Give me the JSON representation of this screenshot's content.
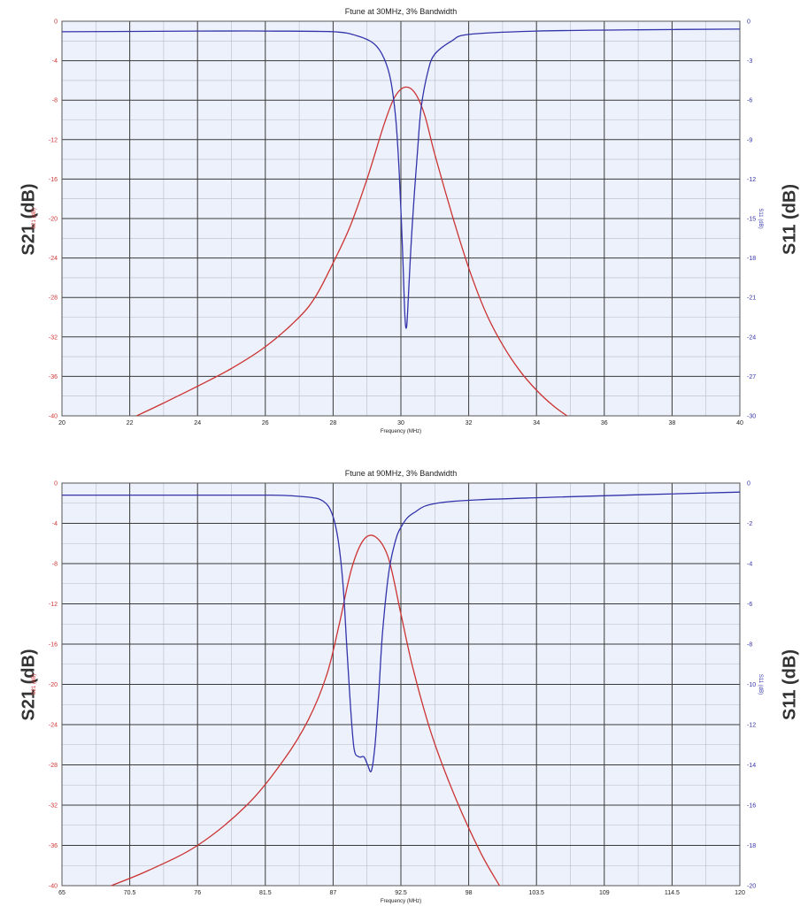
{
  "chart_data": [
    {
      "type": "line",
      "title": "Ftune at 30MHz, 3% Bandwidth",
      "xlabel": "Frequency (MHz)",
      "ylabel_left": "S21 (dB)",
      "ylabel_right": "S11 (dB)",
      "outer_label_left": "S21  (dB)",
      "outer_label_right": "S11  (dB)",
      "xlim": [
        20,
        40
      ],
      "ylim_left": [
        -40,
        0
      ],
      "ylim_right": [
        -30,
        0
      ],
      "x_ticks": [
        "20",
        "22",
        "24",
        "26",
        "28",
        "30",
        "32",
        "34",
        "36",
        "38",
        "40"
      ],
      "y_ticks_left": [
        "0",
        "-4",
        "-8",
        "-12",
        "-16",
        "-20",
        "-24",
        "-28",
        "-32",
        "-36",
        "-40"
      ],
      "y_ticks_right": [
        "0",
        "-3",
        "-6",
        "-9",
        "-12",
        "-15",
        "-18",
        "-21",
        "-24",
        "-27",
        "-30"
      ],
      "grid": true,
      "colors": {
        "s21": "#cc3333",
        "s11": "#3333aa",
        "plot_bg": "#ecf1fb"
      },
      "series": [
        {
          "name": "S21 (dB)",
          "axis": "left",
          "x": [
            22.2,
            23,
            24,
            25,
            26,
            27,
            27.5,
            28,
            28.5,
            29,
            29.5,
            29.8,
            30.1,
            30.4,
            30.7,
            31,
            31.5,
            32,
            32.5,
            33,
            33.5,
            34,
            34.5,
            34.9
          ],
          "values": [
            -40,
            -38.7,
            -37,
            -35.2,
            -33,
            -30,
            -27.8,
            -24.5,
            -20.8,
            -16,
            -10.5,
            -7.8,
            -6.7,
            -7.2,
            -9.5,
            -13.5,
            -19.5,
            -25,
            -29.5,
            -32.8,
            -35.4,
            -37.4,
            -39,
            -40
          ]
        },
        {
          "name": "S11 (dB)",
          "axis": "right",
          "x": [
            20,
            24,
            26,
            28,
            28.7,
            29.2,
            29.5,
            29.7,
            29.85,
            29.95,
            30.05,
            30.12,
            30.17,
            30.22,
            30.3,
            30.4,
            30.5,
            30.6,
            30.8,
            31,
            31.5,
            32,
            34,
            37,
            40
          ],
          "values": [
            -0.8,
            -0.75,
            -0.75,
            -0.8,
            -1.1,
            -1.7,
            -2.8,
            -4.5,
            -7.5,
            -11.5,
            -17.5,
            -22.5,
            -23.2,
            -21,
            -17,
            -13,
            -9.5,
            -6.5,
            -3.8,
            -2.5,
            -1.5,
            -1.0,
            -0.75,
            -0.65,
            -0.6
          ]
        }
      ]
    },
    {
      "type": "line",
      "title": "Ftune at 90MHz, 3% Bandwidth",
      "xlabel": "Frequency (MHz)",
      "ylabel_left": "S21 (dB)",
      "ylabel_right": "S11 (dB)",
      "outer_label_left": "S21  (dB)",
      "outer_label_right": "S11  (dB)",
      "xlim": [
        65,
        120
      ],
      "ylim_left": [
        -40,
        0
      ],
      "ylim_right": [
        -20,
        0
      ],
      "x_ticks": [
        "65",
        "70.5",
        "76",
        "81.5",
        "87",
        "92.5",
        "98",
        "103.5",
        "109",
        "114.5",
        "120"
      ],
      "y_ticks_left": [
        "0",
        "-4",
        "-8",
        "-12",
        "-16",
        "-20",
        "-24",
        "-28",
        "-32",
        "-36",
        "-40"
      ],
      "y_ticks_right": [
        "0",
        "-2",
        "-4",
        "-6",
        "-8",
        "-10",
        "-12",
        "-14",
        "-16",
        "-18",
        "-20"
      ],
      "grid": true,
      "colors": {
        "s21": "#cc3333",
        "s11": "#3333aa",
        "plot_bg": "#ecf1fb"
      },
      "series": [
        {
          "name": "S21 (dB)",
          "axis": "left",
          "x": [
            69,
            72,
            76,
            80,
            83,
            85,
            86.5,
            87.5,
            88.5,
            89.5,
            90.5,
            91.5,
            92.5,
            93.5,
            95,
            97,
            99,
            100.5
          ],
          "values": [
            -40,
            -38.5,
            -36,
            -32,
            -27.5,
            -23.5,
            -19,
            -14,
            -8.5,
            -5.6,
            -5.4,
            -7.5,
            -13,
            -18.5,
            -25,
            -31.5,
            -36.8,
            -40
          ]
        },
        {
          "name": "S11 (dB)",
          "axis": "right",
          "x": [
            65,
            75,
            82,
            85,
            86.2,
            86.9,
            87.4,
            87.8,
            88.1,
            88.4,
            88.7,
            89.1,
            89.5,
            89.8,
            90.1,
            90.4,
            90.7,
            91.0,
            91.5,
            92,
            92.5,
            93.5,
            96,
            105,
            120
          ],
          "values": [
            -0.6,
            -0.6,
            -0.6,
            -0.7,
            -0.9,
            -1.5,
            -2.8,
            -5,
            -8,
            -11,
            -13.2,
            -13.6,
            -13.6,
            -14.0,
            -14.3,
            -13,
            -10.5,
            -7.5,
            -4.5,
            -3.0,
            -2.2,
            -1.5,
            -0.95,
            -0.7,
            -0.45
          ]
        }
      ]
    }
  ]
}
